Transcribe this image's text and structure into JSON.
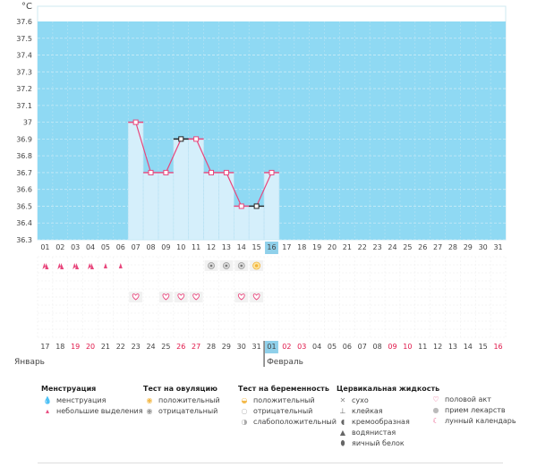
{
  "chart_data": {
    "type": "line",
    "ylabel": "°C",
    "y_ticks": [
      "37.6",
      "37.5",
      "37.4",
      "37.3",
      "37.2",
      "37.1",
      "37",
      "36.9",
      "36.8",
      "36.7",
      "36.6",
      "36.5",
      "36.4",
      "36.3"
    ],
    "ylim": [
      36.3,
      37.6
    ],
    "x_days": [
      "01",
      "02",
      "03",
      "04",
      "05",
      "06",
      "07",
      "08",
      "09",
      "10",
      "11",
      "12",
      "13",
      "14",
      "15",
      "16",
      "17",
      "18",
      "19",
      "20",
      "21",
      "22",
      "23",
      "24",
      "25",
      "26",
      "27",
      "28",
      "29",
      "30",
      "31"
    ],
    "current_day_index": 15,
    "temperature": {
      "days": [
        "07",
        "08",
        "09",
        "10",
        "11",
        "12",
        "13",
        "14",
        "15",
        "16"
      ],
      "values": [
        37.0,
        36.7,
        36.7,
        36.9,
        36.9,
        36.7,
        36.7,
        36.5,
        36.5,
        36.7
      ],
      "black_markers": [
        "10",
        "15"
      ]
    },
    "menstruation": {
      "heavy_days": [
        "01",
        "02",
        "03",
        "04"
      ],
      "light_days": [
        "05",
        "06"
      ]
    },
    "ovulation_tests": {
      "negative_days": [
        "12",
        "13",
        "14"
      ],
      "positive_days": [
        "15"
      ]
    },
    "intercourse_days": [
      "07",
      "09",
      "10",
      "11",
      "14",
      "15"
    ],
    "calendar_dates": [
      "17",
      "18",
      "19",
      "20",
      "21",
      "22",
      "23",
      "24",
      "25",
      "26",
      "27",
      "28",
      "29",
      "30",
      "31",
      "01",
      "02",
      "03",
      "04",
      "05",
      "06",
      "07",
      "08",
      "09",
      "10",
      "11",
      "12",
      "13",
      "14",
      "15",
      "16"
    ],
    "calendar_red": [
      "19",
      "20",
      "26",
      "27",
      "02",
      "03",
      "09",
      "10",
      "16"
    ],
    "calendar_highlight_index": 15,
    "month_left": "Январь",
    "month_right": "Февраль",
    "grid": true,
    "colors": {
      "background": "#8fd9f3",
      "fill": "#d5effb",
      "line": "#e8467c",
      "current_day": "#8fd0ea",
      "red_text": "#e0184a"
    }
  },
  "legend": {
    "menstruation": {
      "title": "Менструация",
      "items": [
        "менструация",
        "небольшие выделения"
      ]
    },
    "ovulation": {
      "title": "Тест на овуляцию",
      "items": [
        "положительный",
        "отрицательный"
      ]
    },
    "pregnancy": {
      "title": "Тест на беременность",
      "items": [
        "положительный",
        "отрицательный",
        "слабоположительный"
      ]
    },
    "cervical": {
      "title": "Цервикальная жидкость",
      "items": [
        "сухо",
        "клейкая",
        "кремообразная",
        "водянистая",
        "яичный белок"
      ]
    },
    "other": {
      "items": [
        "половой акт",
        "прием лекарств",
        "лунный календарь"
      ]
    }
  }
}
